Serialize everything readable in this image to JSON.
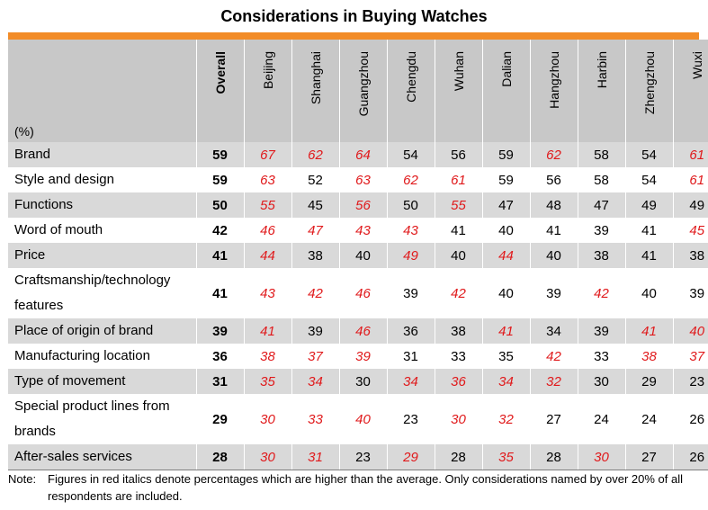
{
  "title": "Considerations in Buying Watches",
  "accent_color": "#f28c28",
  "highlight_color": "#e0191b",
  "chart_data": {
    "type": "table",
    "title": "Considerations in Buying Watches",
    "unit_label": "(%)",
    "columns": [
      "Overall",
      "Beijing",
      "Shanghai",
      "Guangzhou",
      "Chengdu",
      "Wuhan",
      "Dalian",
      "Hangzhou",
      "Harbin",
      "Zhengzhou",
      "Wuxi"
    ],
    "rows": [
      {
        "label": "Brand",
        "values": [
          59,
          67,
          62,
          64,
          54,
          56,
          59,
          62,
          58,
          54,
          61
        ],
        "highlight": [
          false,
          true,
          true,
          true,
          false,
          false,
          false,
          true,
          false,
          false,
          true
        ]
      },
      {
        "label": "Style and design",
        "values": [
          59,
          63,
          52,
          63,
          62,
          61,
          59,
          56,
          58,
          54,
          61
        ],
        "highlight": [
          false,
          true,
          false,
          true,
          true,
          true,
          false,
          false,
          false,
          false,
          true
        ]
      },
      {
        "label": "Functions",
        "values": [
          50,
          55,
          45,
          56,
          50,
          55,
          47,
          48,
          47,
          49,
          49
        ],
        "highlight": [
          false,
          true,
          false,
          true,
          false,
          true,
          false,
          false,
          false,
          false,
          false
        ]
      },
      {
        "label": "Word of mouth",
        "values": [
          42,
          46,
          47,
          43,
          43,
          41,
          40,
          41,
          39,
          41,
          45
        ],
        "highlight": [
          false,
          true,
          true,
          true,
          true,
          false,
          false,
          false,
          false,
          false,
          true
        ]
      },
      {
        "label": "Price",
        "values": [
          41,
          44,
          38,
          40,
          49,
          40,
          44,
          40,
          38,
          41,
          38
        ],
        "highlight": [
          false,
          true,
          false,
          false,
          true,
          false,
          true,
          false,
          false,
          false,
          false
        ]
      },
      {
        "label": "Craftsmanship/technology features",
        "values": [
          41,
          43,
          42,
          46,
          39,
          42,
          40,
          39,
          42,
          40,
          39
        ],
        "highlight": [
          false,
          true,
          true,
          true,
          false,
          true,
          false,
          false,
          true,
          false,
          false
        ]
      },
      {
        "label": "Place of origin of brand",
        "values": [
          39,
          41,
          39,
          46,
          36,
          38,
          41,
          34,
          39,
          41,
          40
        ],
        "highlight": [
          false,
          true,
          false,
          true,
          false,
          false,
          true,
          false,
          false,
          true,
          true
        ]
      },
      {
        "label": "Manufacturing location",
        "values": [
          36,
          38,
          37,
          39,
          31,
          33,
          35,
          42,
          33,
          38,
          37
        ],
        "highlight": [
          false,
          true,
          true,
          true,
          false,
          false,
          false,
          true,
          false,
          true,
          true
        ]
      },
      {
        "label": "Type of movement",
        "values": [
          31,
          35,
          34,
          30,
          34,
          36,
          34,
          32,
          30,
          29,
          23
        ],
        "highlight": [
          false,
          true,
          true,
          false,
          true,
          true,
          true,
          true,
          false,
          false,
          false
        ]
      },
      {
        "label": "Special product lines from brands",
        "values": [
          29,
          30,
          33,
          40,
          23,
          30,
          32,
          27,
          24,
          24,
          26
        ],
        "highlight": [
          false,
          true,
          true,
          true,
          false,
          true,
          true,
          false,
          false,
          false,
          false
        ]
      },
      {
        "label": "After-sales services",
        "values": [
          28,
          30,
          31,
          23,
          29,
          28,
          35,
          28,
          30,
          27,
          26
        ],
        "highlight": [
          false,
          true,
          true,
          false,
          true,
          false,
          true,
          false,
          true,
          false,
          false
        ]
      }
    ]
  },
  "note": {
    "prefix": "Note:",
    "text": "Figures in red italics denote percentages which are higher than the average. Only considerations named by over 20% of all respondents are included."
  }
}
